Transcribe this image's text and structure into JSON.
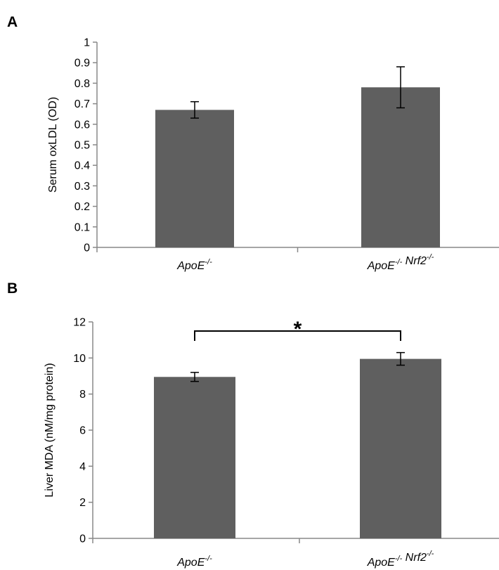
{
  "chart_data": [
    {
      "panel": "A",
      "type": "bar",
      "categories": [
        "ApoE-/-",
        "ApoE-/- Nrf2-/-"
      ],
      "category_labels": [
        [
          {
            "text": "ApoE",
            "sup": "-/-"
          }
        ],
        [
          {
            "text": "ApoE",
            "sup": "-/-"
          },
          {
            "text": " Nrf2",
            "sup": "-/-"
          }
        ]
      ],
      "values": [
        0.67,
        0.78
      ],
      "errors": [
        0.04,
        0.1
      ],
      "ylabel": "Serum oxLDL (OD)",
      "ylim": [
        0,
        1
      ],
      "yticks": [
        0,
        0.1,
        0.2,
        0.3,
        0.4,
        0.5,
        0.6,
        0.7,
        0.8,
        0.9,
        1
      ],
      "ytick_labels": [
        "0",
        "0.1",
        "0.2",
        "0.3",
        "0.4",
        "0.5",
        "0.6",
        "0.7",
        "0.8",
        "0.9",
        "1"
      ],
      "bar_color": "#5f5f5f",
      "grid": false
    },
    {
      "panel": "B",
      "type": "bar",
      "categories": [
        "ApoE-/-",
        "ApoE-/- Nrf2-/-"
      ],
      "category_labels": [
        [
          {
            "text": "ApoE",
            "sup": "-/-"
          }
        ],
        [
          {
            "text": "ApoE",
            "sup": "-/-"
          },
          {
            "text": " Nrf2",
            "sup": "-/-"
          }
        ]
      ],
      "values": [
        8.95,
        9.95
      ],
      "errors": [
        0.25,
        0.35
      ],
      "ylabel": "Liver MDA (nM/mg protein)",
      "ylim": [
        0,
        12
      ],
      "yticks": [
        0,
        2,
        4,
        6,
        8,
        10,
        12
      ],
      "ytick_labels": [
        "0",
        "2",
        "4",
        "6",
        "8",
        "10",
        "12"
      ],
      "bar_color": "#5f5f5f",
      "grid": false,
      "significance": {
        "label": "*",
        "between": [
          0,
          1
        ]
      }
    }
  ]
}
